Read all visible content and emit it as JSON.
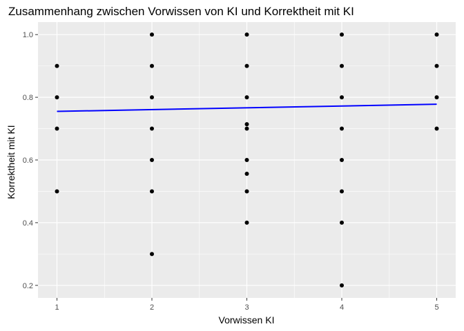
{
  "chart_data": {
    "type": "scatter",
    "title": "Zusammenhang zwischen Vorwissen von KI und Korrektheit mit KI",
    "xlabel": "Vorwissen KI",
    "ylabel": "Korrektheit mit KI",
    "xlim": [
      0.8,
      5.2
    ],
    "ylim": [
      0.16,
      1.04
    ],
    "x_ticks": [
      1,
      2,
      3,
      4,
      5
    ],
    "x_tick_labels": [
      "1",
      "2",
      "3",
      "4",
      "5"
    ],
    "y_ticks": [
      0.2,
      0.4,
      0.6,
      0.8,
      1.0
    ],
    "y_tick_labels": [
      "0.2",
      "0.4",
      "0.6",
      "0.8",
      "1.0"
    ],
    "grid": true,
    "panel_background": "#ebebeb",
    "point_color": "#000000",
    "line_color": "#0000ff",
    "points": [
      {
        "x": 1,
        "y": 0.9
      },
      {
        "x": 1,
        "y": 0.8
      },
      {
        "x": 1,
        "y": 0.7
      },
      {
        "x": 1,
        "y": 0.5
      },
      {
        "x": 2,
        "y": 1.0
      },
      {
        "x": 2,
        "y": 0.9
      },
      {
        "x": 2,
        "y": 0.8
      },
      {
        "x": 2,
        "y": 0.7
      },
      {
        "x": 2,
        "y": 0.6
      },
      {
        "x": 2,
        "y": 0.5
      },
      {
        "x": 2,
        "y": 0.3
      },
      {
        "x": 3,
        "y": 1.0
      },
      {
        "x": 3,
        "y": 0.9
      },
      {
        "x": 3,
        "y": 0.8
      },
      {
        "x": 3,
        "y": 0.714
      },
      {
        "x": 3,
        "y": 0.7
      },
      {
        "x": 3,
        "y": 0.6
      },
      {
        "x": 3,
        "y": 0.556
      },
      {
        "x": 3,
        "y": 0.5
      },
      {
        "x": 3,
        "y": 0.4
      },
      {
        "x": 4,
        "y": 1.0
      },
      {
        "x": 4,
        "y": 0.9
      },
      {
        "x": 4,
        "y": 0.8
      },
      {
        "x": 4,
        "y": 0.7
      },
      {
        "x": 4,
        "y": 0.6
      },
      {
        "x": 4,
        "y": 0.5
      },
      {
        "x": 4,
        "y": 0.4
      },
      {
        "x": 4,
        "y": 0.2
      },
      {
        "x": 5,
        "y": 1.0
      },
      {
        "x": 5,
        "y": 0.9
      },
      {
        "x": 5,
        "y": 0.8
      },
      {
        "x": 5,
        "y": 0.7
      }
    ],
    "trend_line": {
      "x": [
        1,
        5
      ],
      "y": [
        0.755,
        0.778
      ]
    }
  }
}
